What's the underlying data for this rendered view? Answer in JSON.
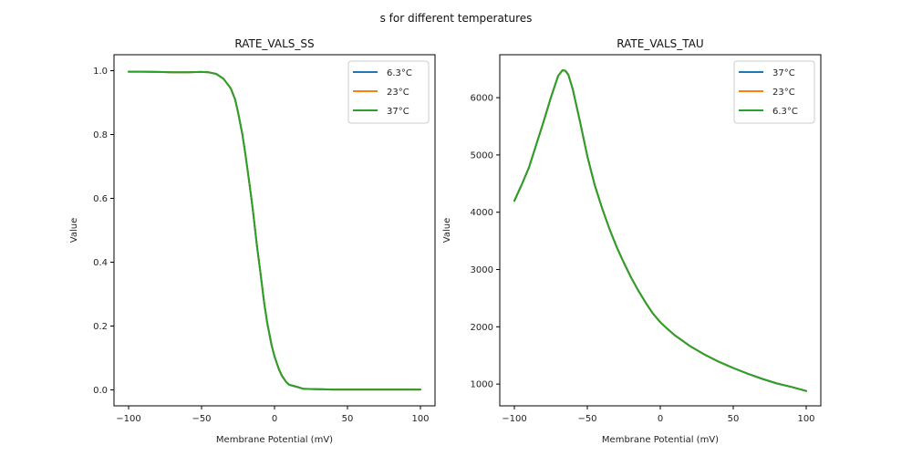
{
  "suptitle": "s for different temperatures",
  "chart_data": [
    {
      "type": "line",
      "title": "RATE_VALS_SS",
      "xlabel": "Membrane Potential (mV)",
      "ylabel": "Value",
      "xlim": [
        -110,
        110
      ],
      "ylim": [
        -0.05,
        1.05
      ],
      "xticks": [
        -100,
        -50,
        0,
        50,
        100
      ],
      "xtick_labels": [
        "−100",
        "−50",
        "0",
        "50",
        "100"
      ],
      "yticks": [
        0.0,
        0.2,
        0.4,
        0.6,
        0.8,
        1.0
      ],
      "ytick_labels": [
        "0.0",
        "0.2",
        "0.4",
        "0.6",
        "0.8",
        "1.0"
      ],
      "grid": false,
      "legend_position": "top-right",
      "x": [
        -100,
        -90,
        -80,
        -70,
        -60,
        -50,
        -45,
        -40,
        -35,
        -30,
        -27,
        -25,
        -22,
        -20,
        -17,
        -15,
        -12,
        -10,
        -7,
        -5,
        -2,
        0,
        3,
        5,
        8,
        10,
        15,
        20,
        30,
        40,
        50,
        60,
        70,
        80,
        90,
        100
      ],
      "series": [
        {
          "name": "6.3°C",
          "color": "#1f77b4",
          "values": [
            0.997,
            0.997,
            0.996,
            0.995,
            0.995,
            0.996,
            0.995,
            0.99,
            0.975,
            0.945,
            0.91,
            0.87,
            0.8,
            0.74,
            0.64,
            0.57,
            0.45,
            0.38,
            0.27,
            0.21,
            0.14,
            0.105,
            0.065,
            0.045,
            0.025,
            0.016,
            0.01,
            0.003,
            0.002,
            0.001,
            0.001,
            0.001,
            0.001,
            0.001,
            0.001,
            0.001
          ]
        },
        {
          "name": "23°C",
          "color": "#ff7f0e",
          "values": [
            0.997,
            0.997,
            0.996,
            0.995,
            0.995,
            0.996,
            0.995,
            0.99,
            0.975,
            0.945,
            0.91,
            0.87,
            0.8,
            0.74,
            0.64,
            0.57,
            0.45,
            0.38,
            0.27,
            0.21,
            0.14,
            0.105,
            0.065,
            0.045,
            0.025,
            0.016,
            0.01,
            0.003,
            0.002,
            0.001,
            0.001,
            0.001,
            0.001,
            0.001,
            0.001,
            0.001
          ]
        },
        {
          "name": "37°C",
          "color": "#2ca02c",
          "values": [
            0.997,
            0.997,
            0.996,
            0.995,
            0.995,
            0.996,
            0.995,
            0.99,
            0.975,
            0.945,
            0.91,
            0.87,
            0.8,
            0.74,
            0.64,
            0.57,
            0.45,
            0.38,
            0.27,
            0.21,
            0.14,
            0.105,
            0.065,
            0.045,
            0.025,
            0.016,
            0.01,
            0.003,
            0.002,
            0.001,
            0.001,
            0.001,
            0.001,
            0.001,
            0.001,
            0.001
          ]
        }
      ]
    },
    {
      "type": "line",
      "title": "RATE_VALS_TAU",
      "xlabel": "Membrane Potential (mV)",
      "ylabel": "Value",
      "xlim": [
        -110,
        110
      ],
      "ylim": [
        620,
        6750
      ],
      "xticks": [
        -100,
        -50,
        0,
        50,
        100
      ],
      "xtick_labels": [
        "−100",
        "−50",
        "0",
        "50",
        "100"
      ],
      "yticks": [
        1000,
        2000,
        3000,
        4000,
        5000,
        6000
      ],
      "ytick_labels": [
        "1000",
        "2000",
        "3000",
        "4000",
        "5000",
        "6000"
      ],
      "grid": false,
      "legend_position": "top-right",
      "x": [
        -100,
        -95,
        -90,
        -85,
        -80,
        -75,
        -70,
        -67,
        -65,
        -63,
        -60,
        -55,
        -50,
        -45,
        -40,
        -35,
        -30,
        -25,
        -20,
        -15,
        -10,
        -5,
        0,
        5,
        10,
        20,
        30,
        40,
        50,
        60,
        70,
        80,
        90,
        100
      ],
      "series": [
        {
          "name": "37°C",
          "color": "#1f77b4",
          "values": [
            4200,
            4480,
            4780,
            5180,
            5580,
            6000,
            6380,
            6480,
            6470,
            6400,
            6150,
            5580,
            4980,
            4480,
            4080,
            3720,
            3400,
            3120,
            2860,
            2630,
            2420,
            2230,
            2080,
            1960,
            1850,
            1670,
            1520,
            1390,
            1280,
            1180,
            1090,
            1010,
            950,
            880
          ]
        },
        {
          "name": "23°C",
          "color": "#ff7f0e",
          "values": [
            4200,
            4480,
            4780,
            5180,
            5580,
            6000,
            6380,
            6480,
            6470,
            6400,
            6150,
            5580,
            4980,
            4480,
            4080,
            3720,
            3400,
            3120,
            2860,
            2630,
            2420,
            2230,
            2080,
            1960,
            1850,
            1670,
            1520,
            1390,
            1280,
            1180,
            1090,
            1010,
            950,
            880
          ]
        },
        {
          "name": "6.3°C",
          "color": "#2ca02c",
          "values": [
            4200,
            4480,
            4780,
            5180,
            5580,
            6000,
            6380,
            6480,
            6470,
            6400,
            6150,
            5580,
            4980,
            4480,
            4080,
            3720,
            3400,
            3120,
            2860,
            2630,
            2420,
            2230,
            2080,
            1960,
            1850,
            1670,
            1520,
            1390,
            1280,
            1180,
            1090,
            1010,
            950,
            880
          ]
        }
      ]
    }
  ]
}
